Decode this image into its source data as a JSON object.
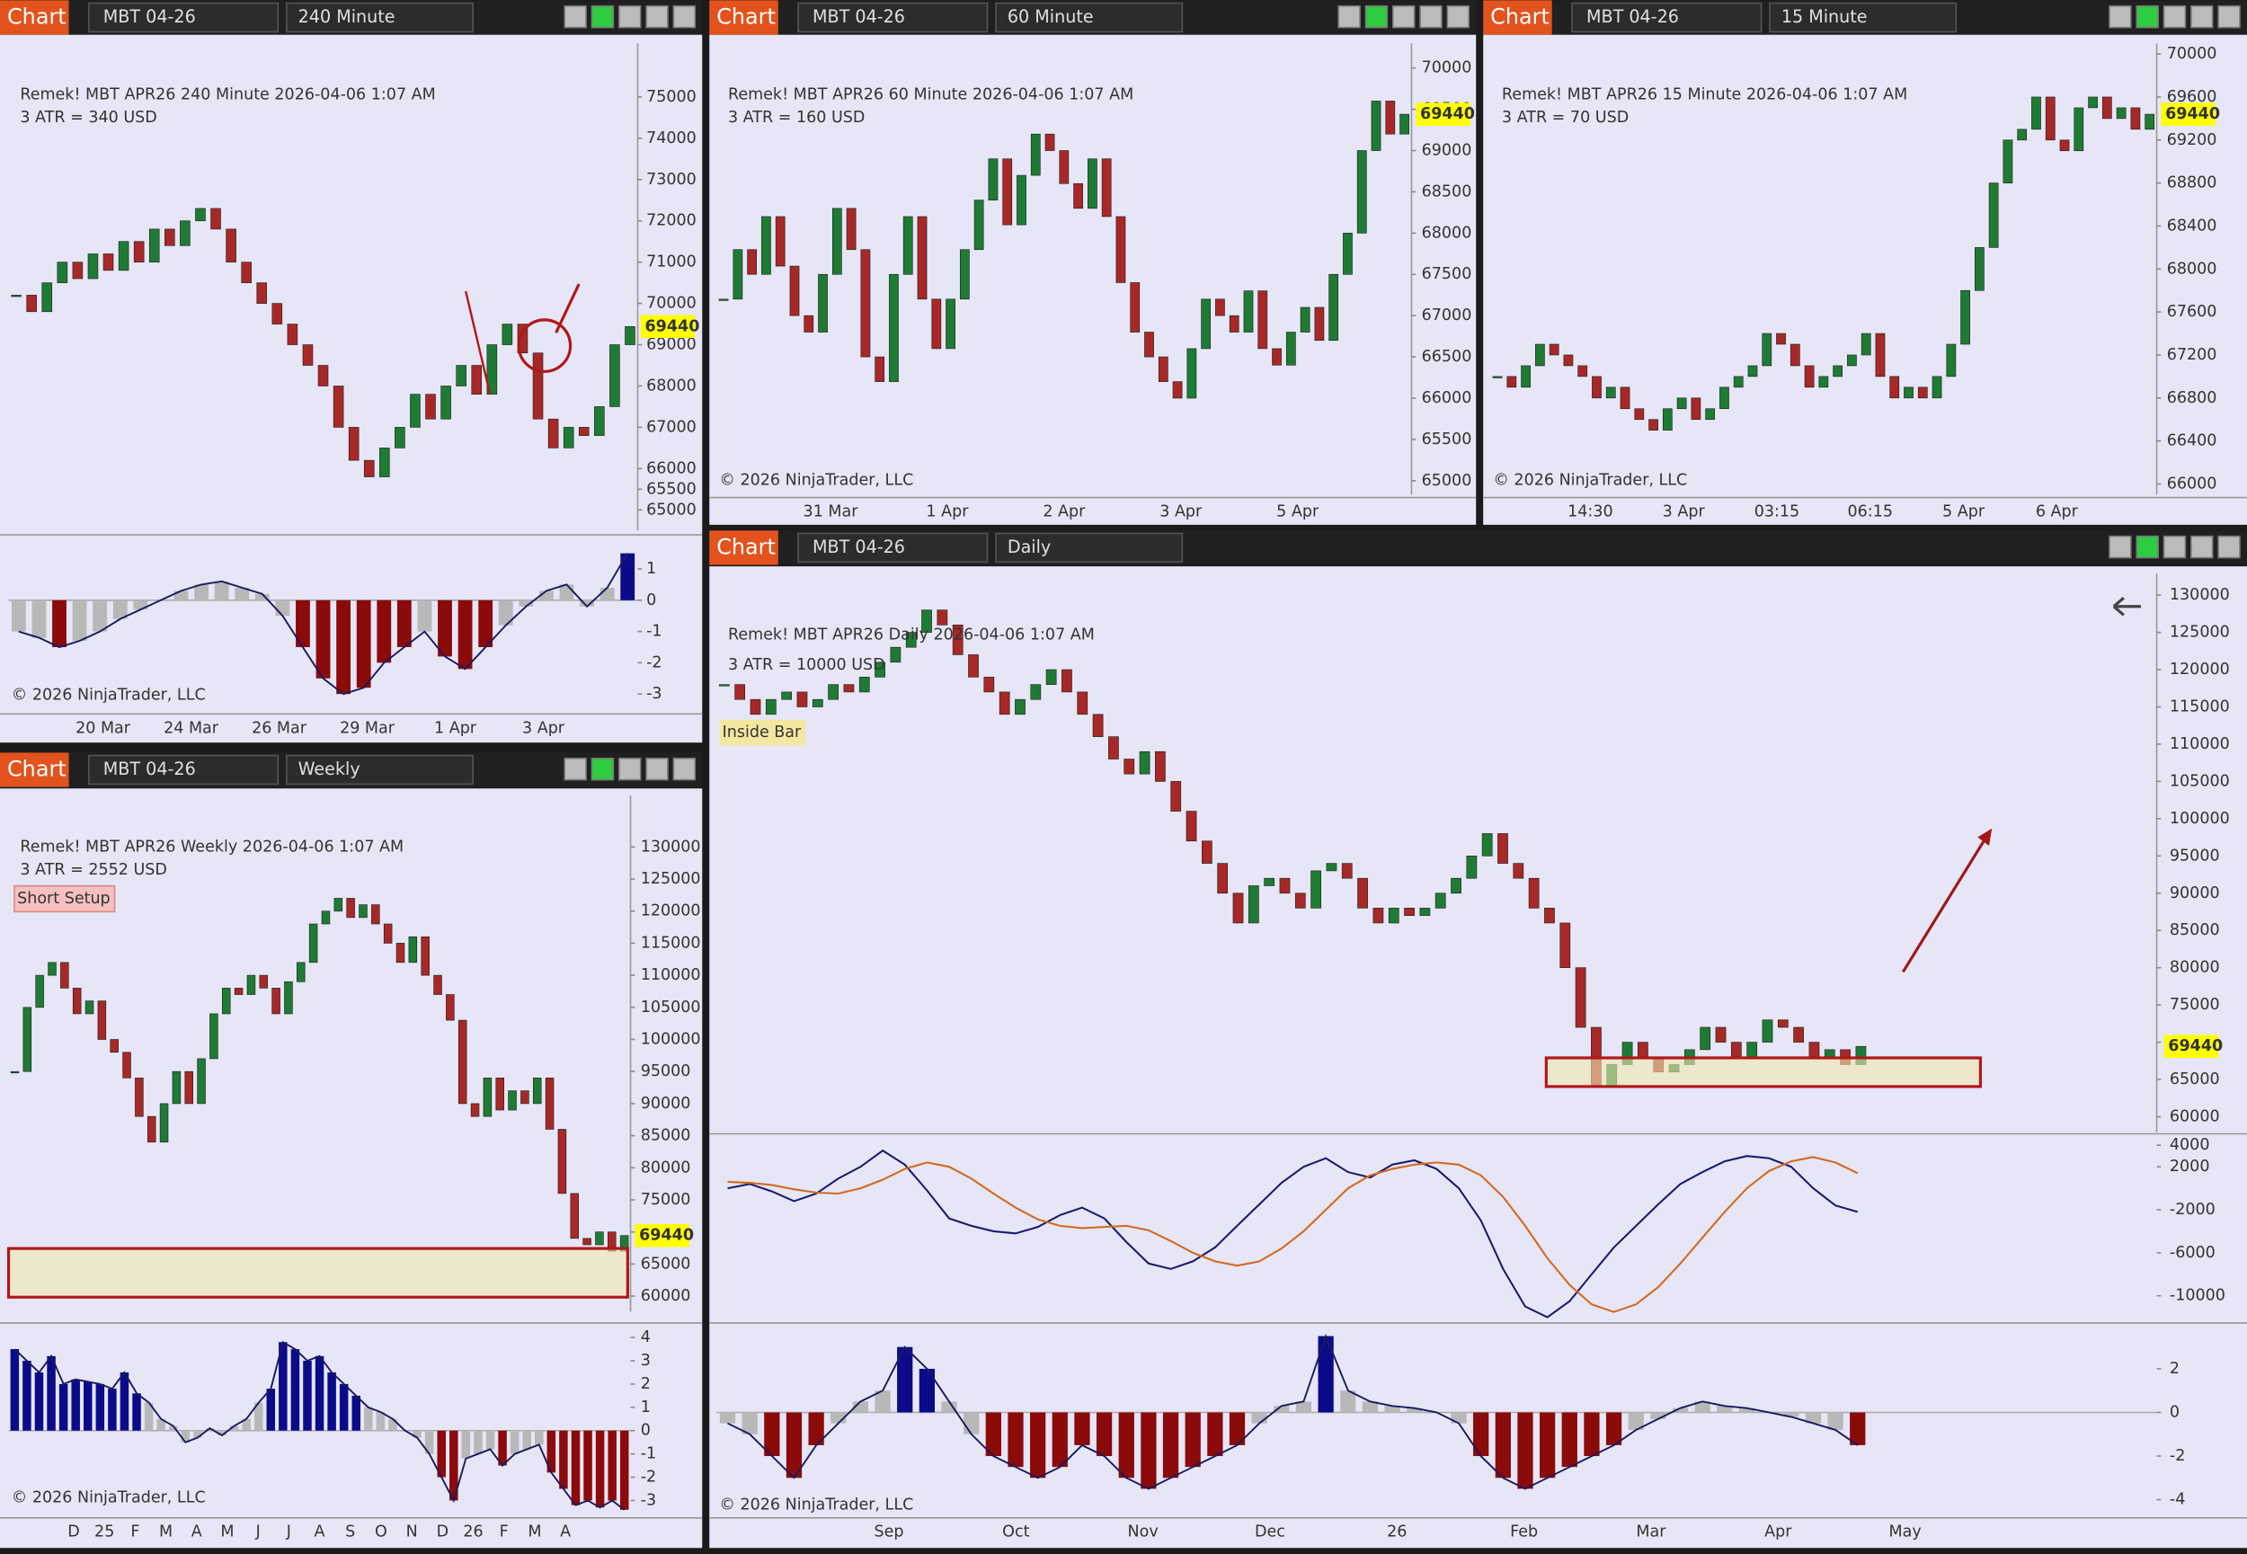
{
  "panels": [
    {
      "tab": "Chart",
      "instrument": "MBT 04-26",
      "interval": "240 Minute",
      "info": "Remek!  MBT APR26  240 Minute  2026-04-06 1:07 AM",
      "atr": "3 ATR = 340 USD",
      "copyright": "© 2026 NinjaTrader, LLC",
      "last": 69440,
      "ylim": [
        64500,
        76300
      ],
      "yticks": [
        65000,
        65500,
        66000,
        67000,
        68000,
        69000,
        70000,
        71000,
        72000,
        73000,
        74000,
        75000
      ],
      "xlabels": [
        "20 Mar",
        "24 Mar",
        "26 Mar",
        "29 Mar",
        "1 Apr",
        "3 Apr"
      ],
      "closes": [
        70200,
        69800,
        70500,
        71000,
        70600,
        71200,
        70800,
        71500,
        71000,
        71800,
        71400,
        72000,
        72300,
        71800,
        71000,
        70500,
        70000,
        69500,
        69000,
        68500,
        68000,
        67000,
        66200,
        65800,
        66500,
        67000,
        67800,
        67200,
        68000,
        68500,
        67800,
        69000,
        69500,
        68800,
        67200,
        66500,
        67000,
        66800,
        67500,
        69000,
        69440
      ],
      "osc": {
        "ylim": [
          -3.5,
          2
        ],
        "yticks": [
          -3,
          -2,
          -1,
          0,
          1
        ],
        "values": [
          -1,
          -1.2,
          -1.5,
          -1.3,
          -1,
          -0.6,
          -0.3,
          0,
          0.3,
          0.5,
          0.6,
          0.4,
          0.2,
          -0.5,
          -1.5,
          -2.5,
          -3,
          -2.8,
          -2,
          -1.5,
          -1,
          -1.8,
          -2.2,
          -1.5,
          -0.8,
          -0.2,
          0.3,
          0.5,
          -0.2,
          0.4,
          1.5
        ]
      }
    },
    {
      "tab": "Chart",
      "instrument": "MBT 04-26",
      "interval": "60 Minute",
      "info": "Remek!  MBT APR26  60 Minute  2026-04-06 1:07 AM",
      "atr": "3 ATR = 160 USD",
      "copyright": "© 2026 NinjaTrader, LLC",
      "last": 69440,
      "ylim": [
        64830,
        70300
      ],
      "yticks": [
        65000,
        65500,
        66000,
        66500,
        67000,
        67500,
        68000,
        68500,
        69000,
        69500,
        70000
      ],
      "xlabels": [
        "31 Mar",
        "1 Apr",
        "2 Apr",
        "3 Apr",
        "5 Apr"
      ],
      "closes": [
        67200,
        67800,
        67500,
        68200,
        67600,
        67000,
        66800,
        67500,
        68300,
        67800,
        66500,
        66200,
        67500,
        68200,
        67200,
        66600,
        67200,
        67800,
        68400,
        68900,
        68100,
        68700,
        69200,
        69000,
        68600,
        68300,
        68900,
        68200,
        67400,
        66800,
        66500,
        66200,
        66000,
        66600,
        67200,
        67000,
        66800,
        67300,
        66600,
        66400,
        66800,
        67100,
        66700,
        67500,
        68000,
        69000,
        69600,
        69200,
        69440
      ]
    },
    {
      "tab": "Chart",
      "instrument": "MBT 04-26",
      "interval": "15 Minute",
      "info": "Remek!  MBT APR26  15 Minute  2026-04-06 1:07 AM",
      "atr": "3 ATR = 70 USD",
      "copyright": "© 2026 NinjaTrader, LLC",
      "last": 69440,
      "ylim": [
        65900,
        70100
      ],
      "yticks": [
        66000,
        66400,
        66800,
        67200,
        67600,
        68000,
        68400,
        68800,
        69200,
        69600,
        70000
      ],
      "xlabels": [
        "14:30",
        "3 Apr",
        "03:15",
        "06:15",
        "5 Apr",
        "6 Apr"
      ],
      "closes": [
        67000,
        66900,
        67100,
        67300,
        67200,
        67100,
        67000,
        66800,
        66900,
        66700,
        66600,
        66500,
        66700,
        66800,
        66600,
        66700,
        66900,
        67000,
        67100,
        67400,
        67300,
        67100,
        66900,
        67000,
        67100,
        67200,
        67400,
        67000,
        66800,
        66900,
        66800,
        67000,
        67300,
        67800,
        68200,
        68800,
        69200,
        69300,
        69600,
        69200,
        69100,
        69500,
        69600,
        69400,
        69500,
        69300,
        69440
      ]
    },
    {
      "tab": "Chart",
      "instrument": "MBT 04-26",
      "interval": "Weekly",
      "info": "Remek!  MBT APR26  Weekly  2026-04-06 1:07 AM",
      "atr": "3 ATR = 2552 USD",
      "tag": "Short Setup",
      "copyright": "© 2026 NinjaTrader, LLC",
      "last": 69440,
      "ylim": [
        57600,
        138000
      ],
      "yticks": [
        60000,
        65000,
        70000,
        75000,
        80000,
        85000,
        90000,
        95000,
        100000,
        105000,
        110000,
        115000,
        120000,
        125000,
        130000
      ],
      "xlabels": [
        "D",
        "25",
        "F",
        "M",
        "A",
        "M",
        "J",
        "J",
        "A",
        "S",
        "O",
        "N",
        "D",
        "26",
        "F",
        "M",
        "A"
      ],
      "closes": [
        95000,
        105000,
        110000,
        112000,
        108000,
        104000,
        106000,
        100000,
        98000,
        94000,
        88000,
        84000,
        90000,
        95000,
        90000,
        97000,
        104000,
        108000,
        107000,
        110000,
        108000,
        104000,
        109000,
        112000,
        118000,
        120000,
        122000,
        119000,
        121000,
        118000,
        115000,
        112000,
        116000,
        110000,
        107000,
        103000,
        90000,
        88000,
        94000,
        89000,
        92000,
        90000,
        94000,
        86000,
        76000,
        69000,
        68000,
        70000,
        67000,
        69440
      ],
      "osc": {
        "ylim": [
          -3.5,
          4.5
        ],
        "yticks": [
          4,
          3,
          2,
          1,
          0,
          -1,
          -2,
          -3
        ],
        "values": [
          3.5,
          3,
          2.5,
          3.2,
          2,
          2.2,
          2.1,
          2,
          1.8,
          2.5,
          1.6,
          1.2,
          0.5,
          0.2,
          -0.5,
          -0.3,
          0.1,
          -0.2,
          0.2,
          0.5,
          1.2,
          1.8,
          3.8,
          3.5,
          3,
          3.2,
          2.5,
          2,
          1.5,
          1,
          0.8,
          0.5,
          0,
          -0.3,
          -1,
          -2,
          -3,
          -1.2,
          -1,
          -0.8,
          -1.5,
          -1,
          -0.8,
          -0.6,
          -1.8,
          -2.5,
          -3.2,
          -3,
          -3.3,
          -3,
          -3.4
        ]
      }
    },
    {
      "tab": "Chart",
      "instrument": "MBT 04-26",
      "interval": "Daily",
      "info": "Remek!  MBT APR26  Daily  2026-04-06 1:07 AM",
      "atr": "3 ATR = 10000 USD",
      "tag": "Inside Bar",
      "copyright": "© 2026 NinjaTrader, LLC",
      "last": 69440,
      "ylim": [
        57900,
        132900
      ],
      "yticks": [
        60000,
        65000,
        70000,
        75000,
        80000,
        85000,
        90000,
        95000,
        100000,
        105000,
        110000,
        115000,
        120000,
        125000,
        130000
      ],
      "xlabels": [
        "Sep",
        "Oct",
        "Nov",
        "Dec",
        "26",
        "Feb",
        "Mar",
        "Apr",
        "May"
      ],
      "closes": [
        118000,
        116000,
        114000,
        116000,
        117000,
        115000,
        116000,
        118000,
        117000,
        119000,
        121000,
        123000,
        125000,
        128000,
        126000,
        122000,
        119000,
        117000,
        114000,
        116000,
        118000,
        120000,
        117000,
        114000,
        111000,
        108000,
        106000,
        109000,
        105000,
        101000,
        97000,
        94000,
        90000,
        86000,
        91000,
        92000,
        90000,
        88000,
        93000,
        94000,
        92000,
        88000,
        86000,
        88000,
        87000,
        88000,
        90000,
        92000,
        95000,
        98000,
        94000,
        92000,
        88000,
        86000,
        80000,
        72000,
        64000,
        67000,
        70000,
        68000,
        66000,
        67000,
        69000,
        72000,
        70000,
        68000,
        70000,
        73000,
        72000,
        70000,
        68000,
        69000,
        67000,
        69440
      ],
      "macd": {
        "ylim": [
          -12130,
          4930
        ],
        "yticks": [
          4000,
          2000,
          -2000,
          -6000,
          -10000
        ],
        "series": [
          {
            "color": "#1a1a6e",
            "values": [
              0,
              400,
              -300,
              -1200,
              -500,
              900,
              2000,
              3500,
              2200,
              -200,
              -2800,
              -3500,
              -4000,
              -4200,
              -3600,
              -2500,
              -1800,
              -2800,
              -5000,
              -7000,
              -7500,
              -6800,
              -5500,
              -3500,
              -1500,
              500,
              2000,
              2800,
              1500,
              1000,
              2200,
              2600,
              1800,
              0,
              -3000,
              -7500,
              -11000,
              -12000,
              -10500,
              -8000,
              -5500,
              -3500,
              -1500,
              400,
              1500,
              2500,
              3000,
              2800,
              2000,
              0,
              -1600,
              -2200
            ]
          },
          {
            "color": "#d2691e",
            "values": [
              600,
              500,
              300,
              -100,
              -400,
              -500,
              0,
              800,
              1800,
              2400,
              2000,
              900,
              -500,
              -1800,
              -2900,
              -3500,
              -3700,
              -3600,
              -3500,
              -3900,
              -4900,
              -6000,
              -6800,
              -7200,
              -6800,
              -5600,
              -4000,
              -2000,
              0,
              1200,
              1800,
              2200,
              2400,
              2200,
              1200,
              -800,
              -3500,
              -6500,
              -9000,
              -10800,
              -11500,
              -10800,
              -9200,
              -7000,
              -4600,
              -2200,
              0,
              1600,
              2500,
              2900,
              2400,
              1400
            ]
          }
        ]
      },
      "osc": {
        "ylim": [
          -4.9,
          3.97
        ],
        "yticks": [
          2,
          0,
          -2,
          -4
        ],
        "values": [
          -0.5,
          -1,
          -2,
          -3,
          -1.5,
          -0.5,
          0.5,
          1,
          3,
          2,
          0.5,
          -1,
          -2,
          -2.5,
          -3,
          -2.5,
          -1.5,
          -2,
          -3,
          -3.5,
          -3,
          -2.5,
          -2,
          -1.5,
          -0.5,
          0.3,
          0.5,
          3.5,
          1,
          0.5,
          0.3,
          0.2,
          0,
          -0.5,
          -2,
          -3,
          -3.5,
          -3,
          -2.5,
          -2,
          -1.5,
          -0.8,
          -0.3,
          0.2,
          0.5,
          0.3,
          0.2,
          0,
          -0.2,
          -0.5,
          -0.8,
          -1.5
        ]
      }
    }
  ]
}
